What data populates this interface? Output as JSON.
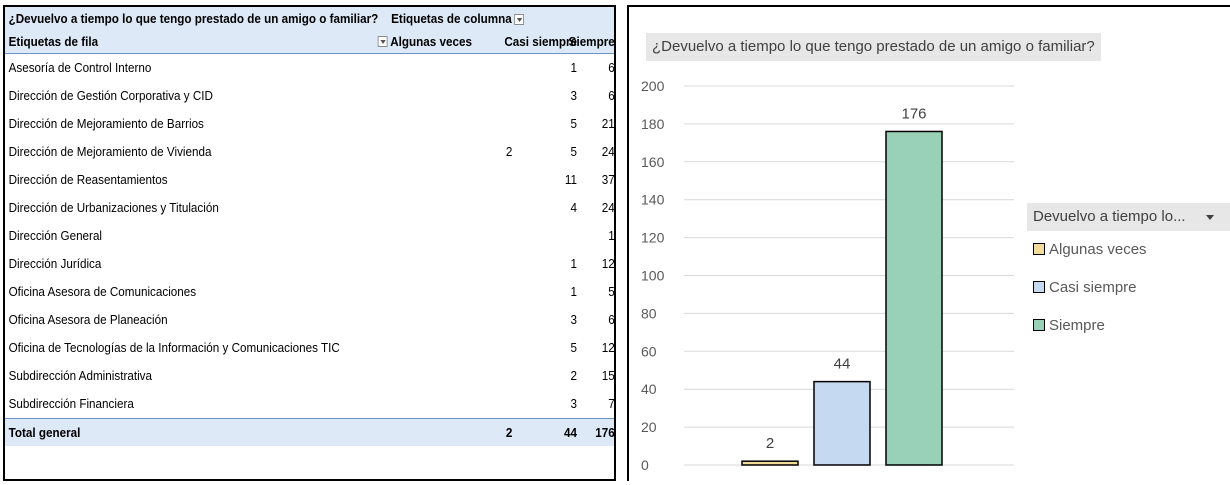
{
  "pivot": {
    "question_header": "¿Devuelvo a tiempo lo que tengo prestado de un amigo o familiar?",
    "column_labels_header": "Etiquetas de columna",
    "row_labels_header": "Etiquetas de fila",
    "columns": [
      "Algunas veces",
      "Casi siempre",
      "Siempre"
    ],
    "rows": [
      {
        "label": "Asesoría de Control Interno",
        "v1": "",
        "v2": "1",
        "v3": "6"
      },
      {
        "label": "Dirección de Gestión Corporativa y CID",
        "v1": "",
        "v2": "3",
        "v3": "6"
      },
      {
        "label": "Dirección de Mejoramiento de Barrios",
        "v1": "",
        "v2": "5",
        "v3": "21"
      },
      {
        "label": "Dirección de Mejoramiento de Vivienda",
        "v1": "2",
        "v2": "5",
        "v3": "24"
      },
      {
        "label": "Dirección de Reasentamientos",
        "v1": "",
        "v2": "11",
        "v3": "37"
      },
      {
        "label": "Dirección de Urbanizaciones y Titulación",
        "v1": "",
        "v2": "4",
        "v3": "24"
      },
      {
        "label": "Dirección General",
        "v1": "",
        "v2": "",
        "v3": "1"
      },
      {
        "label": "Dirección Jurídica",
        "v1": "",
        "v2": "1",
        "v3": "12"
      },
      {
        "label": "Oficina Asesora de Comunicaciones",
        "v1": "",
        "v2": "1",
        "v3": "5"
      },
      {
        "label": "Oficina Asesora de Planeación",
        "v1": "",
        "v2": "3",
        "v3": "6"
      },
      {
        "label": "Oficina de Tecnologías de la Información y Comunicaciones TIC",
        "v1": "",
        "v2": "5",
        "v3": "12"
      },
      {
        "label": "Subdirección Administrativa",
        "v1": "",
        "v2": "2",
        "v3": "15"
      },
      {
        "label": "Subdirección Financiera",
        "v1": "",
        "v2": "3",
        "v3": "7"
      }
    ],
    "total": {
      "label": "Total general",
      "v1": "2",
      "v2": "44",
      "v3": "176"
    }
  },
  "chart_data": {
    "type": "bar",
    "title": "¿Devuelvo a tiempo lo que tengo prestado de un amigo o familiar?",
    "categories": [
      "Algunas veces",
      "Casi siempre",
      "Siempre"
    ],
    "values": [
      2,
      44,
      176
    ],
    "colors": [
      "#f3dc9a",
      "#c5d9f1",
      "#99d1b8"
    ],
    "ylim": [
      0,
      200
    ],
    "yticks": [
      0,
      20,
      40,
      60,
      80,
      100,
      120,
      140,
      160,
      180,
      200
    ],
    "xlabel": "",
    "ylabel": "",
    "grid": true,
    "legend": {
      "title": "Devuelvo a tiempo lo...",
      "placement": "right",
      "items": [
        "Algunas veces",
        "Casi siempre",
        "Siempre"
      ]
    }
  }
}
